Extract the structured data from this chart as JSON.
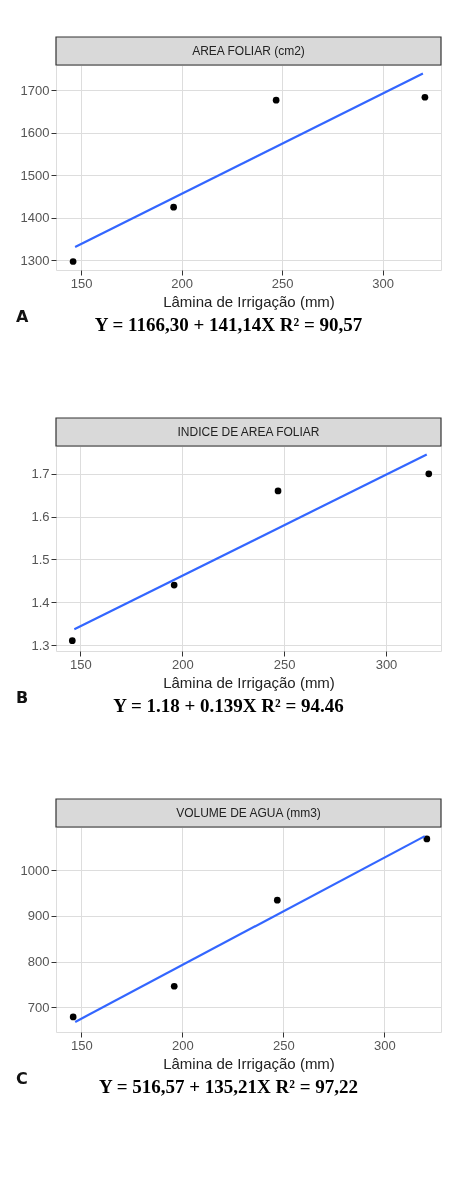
{
  "chart_data": [
    {
      "type": "scatter",
      "title": "AREA FOLIAR (cm2)",
      "xlabel": "Lâmina de Irrigação (mm)",
      "xlim": [
        137.5,
        329
      ],
      "ylim": [
        1277,
        1760
      ],
      "xticks": [
        150,
        200,
        250,
        300
      ],
      "yticks": [
        1300,
        1400,
        1500,
        1600,
        1700
      ],
      "grid": true,
      "annotations": [
        "A",
        "Y = 1166,30 + 141,14X  R² = 90,57"
      ],
      "series": [
        {
          "color": "#000000",
          "marker": "circle",
          "x": [
            146,
            196,
            247,
            321
          ],
          "values": [
            1297,
            1425,
            1677,
            1684
          ]
        },
        {
          "type": "line",
          "color": "#3366ff",
          "x": [
            147,
            320
          ],
          "values": [
            1331,
            1740
          ]
        }
      ]
    },
    {
      "type": "scatter",
      "title": "INDICE DE AREA FOLIAR",
      "xlabel": "Lâmina de Irrigação (mm)",
      "xlim": [
        138,
        327
      ],
      "ylim": [
        1.286,
        1.765
      ],
      "xticks": [
        150,
        200,
        250,
        300
      ],
      "yticks": [
        1.3,
        1.4,
        1.5,
        1.6,
        1.7
      ],
      "grid": true,
      "annotations": [
        "B",
        "Y = 1.18 + 0.139X  R² = 94.46"
      ],
      "series": [
        {
          "color": "#000000",
          "marker": "circle",
          "x": [
            146,
            196,
            247,
            321
          ],
          "values": [
            1.31,
            1.44,
            1.66,
            1.7
          ]
        },
        {
          "type": "line",
          "color": "#3366ff",
          "x": [
            147,
            320
          ],
          "values": [
            1.337,
            1.745
          ]
        }
      ]
    },
    {
      "type": "scatter",
      "title": "VOLUME DE AGUA (mm3)",
      "xlabel": "Lâmina de Irrigação (mm)",
      "xlim": [
        137.5,
        328
      ],
      "ylim": [
        646,
        1094
      ],
      "xticks": [
        150,
        200,
        250,
        300
      ],
      "yticks": [
        700,
        800,
        900,
        1000
      ],
      "grid": true,
      "annotations": [
        "C",
        "Y = 516,57 + 135,21X  R² = 97,22"
      ],
      "series": [
        {
          "color": "#000000",
          "marker": "circle",
          "x": [
            146,
            196,
            247,
            321
          ],
          "values": [
            679,
            746,
            934,
            1068
          ]
        },
        {
          "type": "line",
          "color": "#3366ff",
          "x": [
            147,
            320
          ],
          "values": [
            668,
            1074
          ]
        }
      ]
    }
  ]
}
